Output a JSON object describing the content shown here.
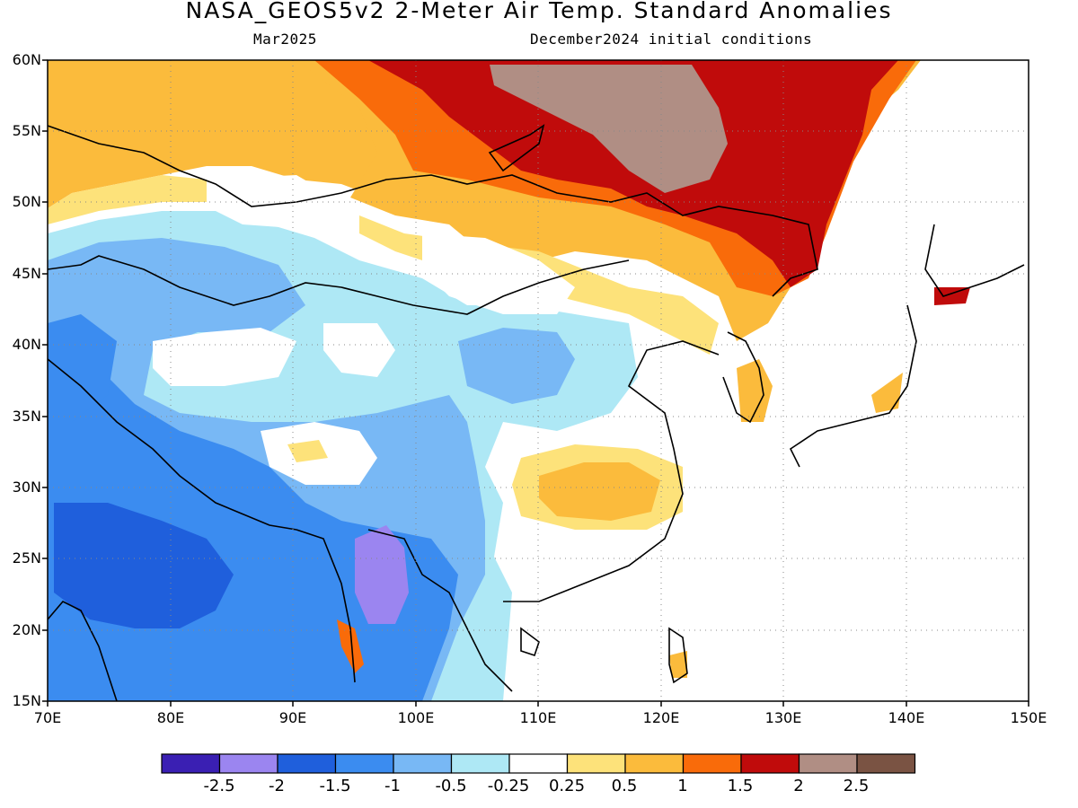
{
  "title": "NASA_GEOS5v2 2-Meter Air Temp. Standard Anomalies",
  "subtitle_left": "Mar2025",
  "subtitle_right": "December2024 initial conditions",
  "lat_labels": [
    "60N",
    "55N",
    "50N",
    "45N",
    "40N",
    "35N",
    "30N",
    "25N",
    "20N",
    "15N"
  ],
  "lon_labels": [
    "70E",
    "80E",
    "90E",
    "100E",
    "110E",
    "120E",
    "130E",
    "140E",
    "150E"
  ],
  "colorbar": {
    "colors": [
      "#3a1fb3",
      "#9b85f0",
      "#1f5fdc",
      "#3b8cf0",
      "#78b8f5",
      "#aee8f5",
      "#ffffff",
      "#fde27a",
      "#fbbb3c",
      "#f96b0a",
      "#c00b0b",
      "#b08e84",
      "#7a5343"
    ],
    "labels": [
      "-2.5",
      "-2",
      "-1.5",
      "-1",
      "-0.5",
      "-0.25",
      "0.25",
      "0.5",
      "1",
      "1.5",
      "2",
      "2.5"
    ]
  }
}
